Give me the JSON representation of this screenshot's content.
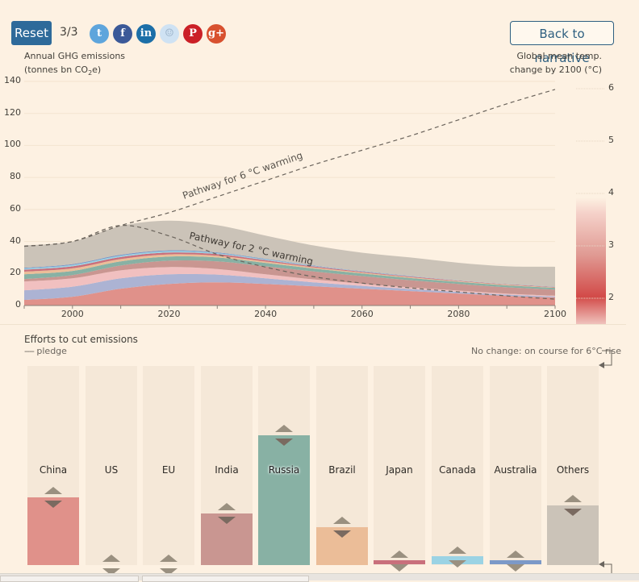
{
  "toolbar": {
    "reset_label": "Reset",
    "step": "3/3",
    "share": [
      {
        "name": "twitter",
        "glyph": "t",
        "color": "#5ea5dc"
      },
      {
        "name": "facebook",
        "glyph": "f",
        "color": "#3b5998"
      },
      {
        "name": "linkedin",
        "glyph": "in",
        "color": "#1c6fa8"
      },
      {
        "name": "reddit",
        "glyph": "☺",
        "color": "#cfe2f3"
      },
      {
        "name": "pinterest",
        "glyph": "P",
        "color": "#cb2027"
      },
      {
        "name": "google-plus",
        "glyph": "g+",
        "color": "#d8512f"
      }
    ],
    "back_label": "Back to narrative"
  },
  "chart_data": [
    {
      "type": "area",
      "stacked": true,
      "title": "Annual GHG emissions",
      "ylabel": "Annual GHG emissions (tonnes bn CO2e)",
      "ylabel_line1": "Annual GHG emissions",
      "ylabel_line2_pre": "(tonnes bn CO",
      "ylabel_line2_sub": "2",
      "ylabel_line2_post": "e)",
      "xlim": [
        1990,
        2100
      ],
      "ylim": [
        0,
        140
      ],
      "yticks": [
        0,
        20,
        40,
        60,
        80,
        100,
        120,
        140
      ],
      "xticks": [
        2000,
        2020,
        2040,
        2060,
        2080,
        2100
      ],
      "x": [
        1990,
        2000,
        2010,
        2020,
        2030,
        2040,
        2050,
        2060,
        2070,
        2080,
        2090,
        2100
      ],
      "series": [
        {
          "name": "China",
          "color": "#e0918a",
          "values": [
            3.5,
            5.5,
            10.5,
            13.5,
            14.5,
            13.5,
            12,
            10.5,
            9,
            7.5,
            6,
            5
          ]
        },
        {
          "name": "US",
          "color": "#acb3d3",
          "values": [
            6,
            6.3,
            6.5,
            6,
            4.8,
            3.5,
            2.5,
            1.8,
            1.3,
            1,
            0.8,
            0.6
          ]
        },
        {
          "name": "EU",
          "color": "#f1c0c0",
          "values": [
            5.5,
            5.2,
            5,
            4.5,
            3.5,
            2.5,
            1.8,
            1.3,
            1,
            0.8,
            0.6,
            0.5
          ]
        },
        {
          "name": "India",
          "color": "#c99691",
          "values": [
            1.5,
            2,
            3,
            4,
            4.8,
            5,
            5,
            4.8,
            4.5,
            4.2,
            4,
            3.8
          ]
        },
        {
          "name": "Russia",
          "color": "#88b1a4",
          "values": [
            3,
            2.6,
            2.6,
            2.6,
            2.4,
            2.1,
            1.8,
            1.6,
            1.4,
            1.3,
            1.2,
            1.1
          ]
        },
        {
          "name": "Brazil",
          "color": "#ebbd98",
          "values": [
            1.6,
            1.6,
            1.4,
            1.3,
            1.1,
            0.9,
            0.7,
            0.6,
            0.5,
            0.4,
            0.4,
            0.3
          ]
        },
        {
          "name": "Japan",
          "color": "#c9707c",
          "values": [
            1.3,
            1.3,
            1.3,
            1.2,
            1,
            0.8,
            0.6,
            0.5,
            0.4,
            0.3,
            0.3,
            0.2
          ]
        },
        {
          "name": "Canada",
          "color": "#9bd3e4",
          "values": [
            0.7,
            0.8,
            0.8,
            0.8,
            0.6,
            0.5,
            0.3,
            0.2,
            0.2,
            0.1,
            0.1,
            0.1
          ]
        },
        {
          "name": "Australia",
          "color": "#7c99c8",
          "values": [
            0.5,
            0.6,
            0.6,
            0.6,
            0.5,
            0.4,
            0.3,
            0.2,
            0.2,
            0.1,
            0.1,
            0.1
          ]
        },
        {
          "name": "Others",
          "color": "#cbc3b8",
          "values": [
            14,
            14,
            18,
            18.5,
            17,
            14.5,
            12.5,
            11.5,
            11.5,
            11,
            11,
            12.5
          ]
        }
      ],
      "reference_lines": [
        {
          "name": "Pathway for 6 °C warming",
          "label": "Pathway for 6 °C warming",
          "dashed": true,
          "points": [
            [
              1990,
              37
            ],
            [
              2000,
              40
            ],
            [
              2010,
              50
            ],
            [
              2020,
              58
            ],
            [
              2030,
              68
            ],
            [
              2040,
              78
            ],
            [
              2050,
              88
            ],
            [
              2060,
              97
            ],
            [
              2070,
              106
            ],
            [
              2080,
              116
            ],
            [
              2090,
              126
            ],
            [
              2100,
              135
            ]
          ]
        },
        {
          "name": "Pathway for 2 °C warming",
          "label": "Pathway for 2 °C warming",
          "dashed": true,
          "points": [
            [
              1990,
              37
            ],
            [
              2000,
              40
            ],
            [
              2010,
              50
            ],
            [
              2020,
              43.5
            ],
            [
              2030,
              32
            ],
            [
              2040,
              24
            ],
            [
              2050,
              18
            ],
            [
              2060,
              14
            ],
            [
              2070,
              11
            ],
            [
              2080,
              8.5
            ],
            [
              2090,
              6
            ],
            [
              2100,
              4
            ]
          ]
        }
      ],
      "secondary_axis": {
        "label_line1": "Global mean temp.",
        "label_line2": "change by 2100 (°C)",
        "ticks": [
          2,
          3,
          4,
          5,
          6
        ],
        "colorscale": "red gradient, most intense near 2 °C, fading toward 4 °C"
      }
    },
    {
      "type": "bar",
      "title": "Efforts to cut emissions",
      "legend": "pledge",
      "annotation": "No change: on course for 6°C rise",
      "categories": [
        "China",
        "US",
        "EU",
        "India",
        "Russia",
        "Brazil",
        "Japan",
        "Canada",
        "Australia",
        "Others"
      ],
      "values_fraction": [
        0.34,
        0.0,
        0.0,
        0.26,
        0.65,
        0.19,
        0.02,
        0.04,
        0.01,
        0.3
      ],
      "colors": [
        "#e0918a",
        "#acb3d3",
        "#f1c0c0",
        "#c99691",
        "#88b1a4",
        "#ebbd98",
        "#c9707c",
        "#9bd3e4",
        "#7c99c8",
        "#cbc3b8"
      ]
    }
  ]
}
